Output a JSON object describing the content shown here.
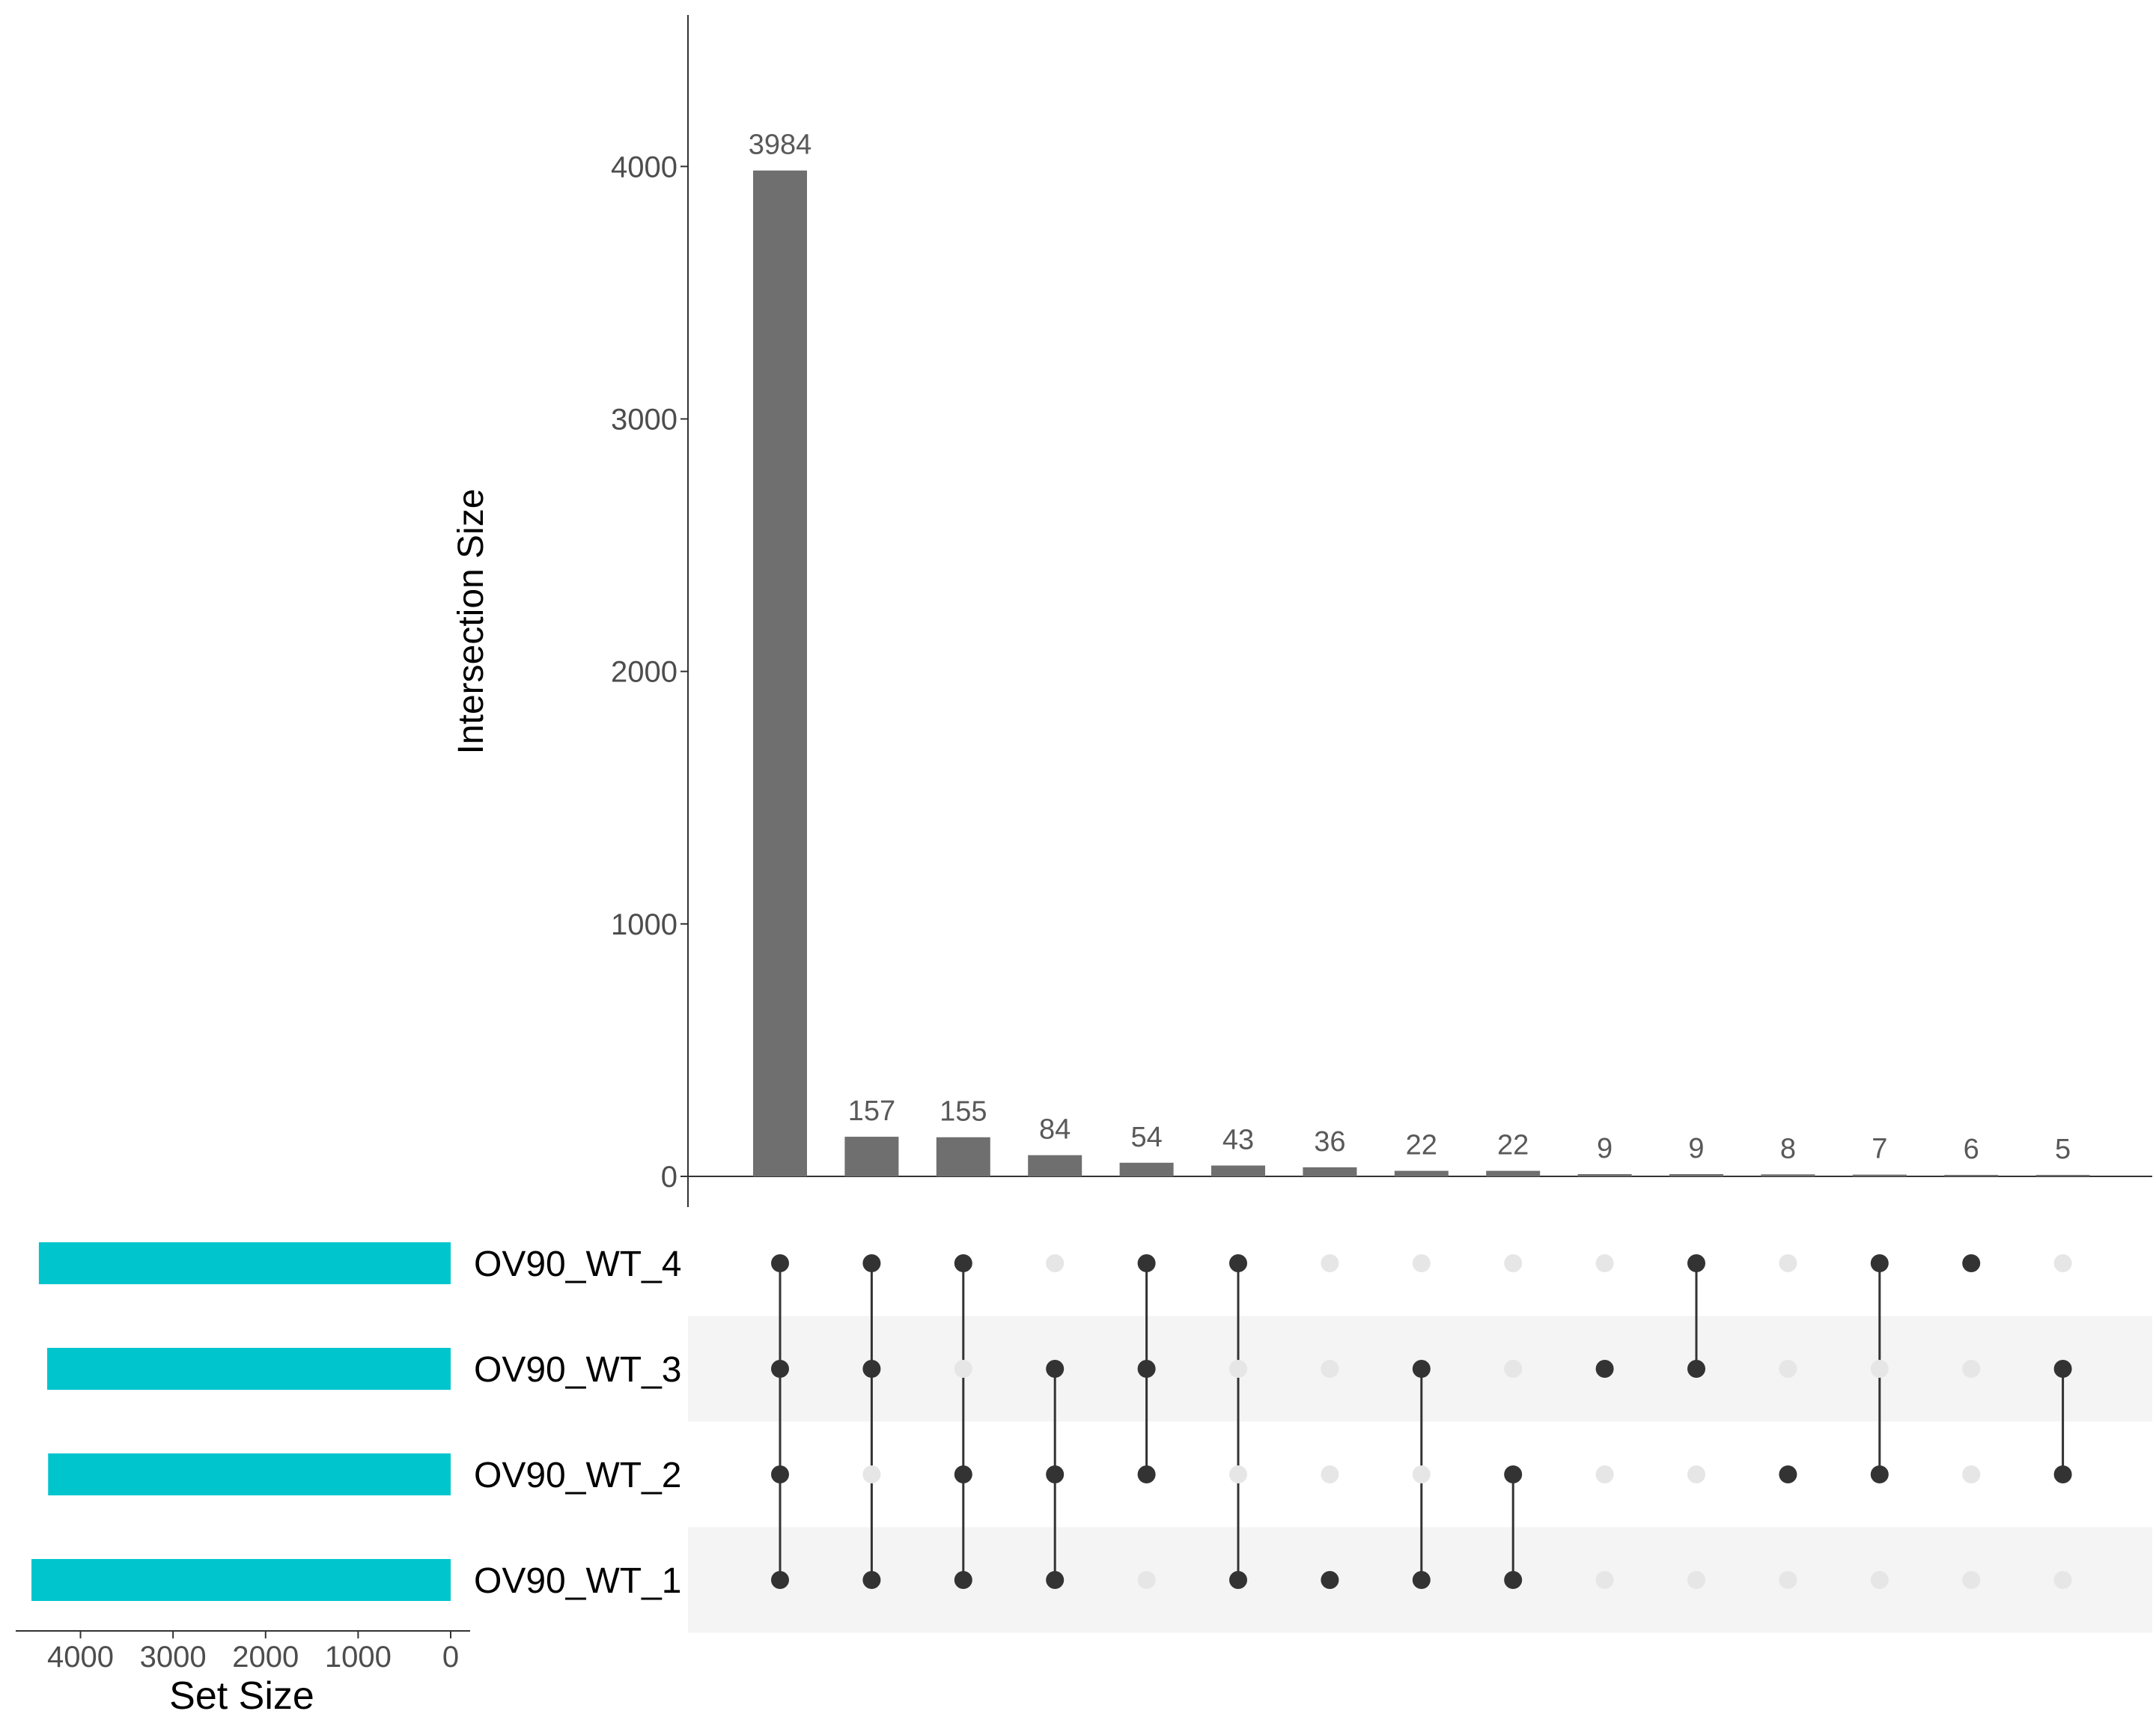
{
  "colors": {
    "bar": "#6f6f6f",
    "bar_label": "#595959",
    "tick_text": "#4d4d4d",
    "axis": "#333333",
    "dot_active": "#333333",
    "dot_inactive": "#e6e6e6",
    "stripe": "#f4f4f4",
    "set_bar": "#00c5cd",
    "title_text": "#000000"
  },
  "chart_data": [
    {
      "type": "bar",
      "ylabel": "Intersection Size",
      "ylim": [
        0,
        4600
      ],
      "yticks": [
        0,
        1000,
        2000,
        3000,
        4000
      ],
      "ytick_labels": [
        "0",
        "1000",
        "2000",
        "3000",
        "4000"
      ],
      "values": [
        3984,
        157,
        155,
        84,
        54,
        43,
        36,
        22,
        22,
        9,
        9,
        8,
        7,
        6,
        5
      ],
      "data_labels": [
        "3984",
        "157",
        "155",
        "84",
        "54",
        "43",
        "36",
        "22",
        "22",
        "9",
        "9",
        "8",
        "7",
        "6",
        "5"
      ],
      "grid": false
    },
    {
      "type": "bar",
      "orientation": "horizontal-reversed",
      "xlabel": "Set Size",
      "sets": [
        "OV90_WT_4",
        "OV90_WT_3",
        "OV90_WT_2",
        "OV90_WT_1"
      ],
      "values": [
        4450,
        4360,
        4350,
        4530
      ],
      "xlim": [
        0,
        4700
      ],
      "xticks": [
        4000,
        3000,
        2000,
        1000,
        0
      ],
      "xtick_labels": [
        "4000",
        "3000",
        "2000",
        "1000",
        "0"
      ]
    },
    {
      "type": "matrix",
      "rows": [
        "OV90_WT_4",
        "OV90_WT_3",
        "OV90_WT_2",
        "OV90_WT_1"
      ],
      "membership": [
        [
          1,
          1,
          1,
          1
        ],
        [
          1,
          1,
          0,
          1
        ],
        [
          1,
          0,
          1,
          1
        ],
        [
          0,
          1,
          1,
          1
        ],
        [
          1,
          1,
          1,
          0
        ],
        [
          1,
          0,
          0,
          1
        ],
        [
          0,
          0,
          0,
          1
        ],
        [
          0,
          1,
          0,
          1
        ],
        [
          0,
          0,
          1,
          1
        ],
        [
          0,
          1,
          0,
          0
        ],
        [
          1,
          1,
          0,
          0
        ],
        [
          0,
          0,
          1,
          0
        ],
        [
          1,
          0,
          1,
          0
        ],
        [
          1,
          0,
          0,
          0
        ],
        [
          0,
          1,
          1,
          0
        ]
      ]
    }
  ]
}
